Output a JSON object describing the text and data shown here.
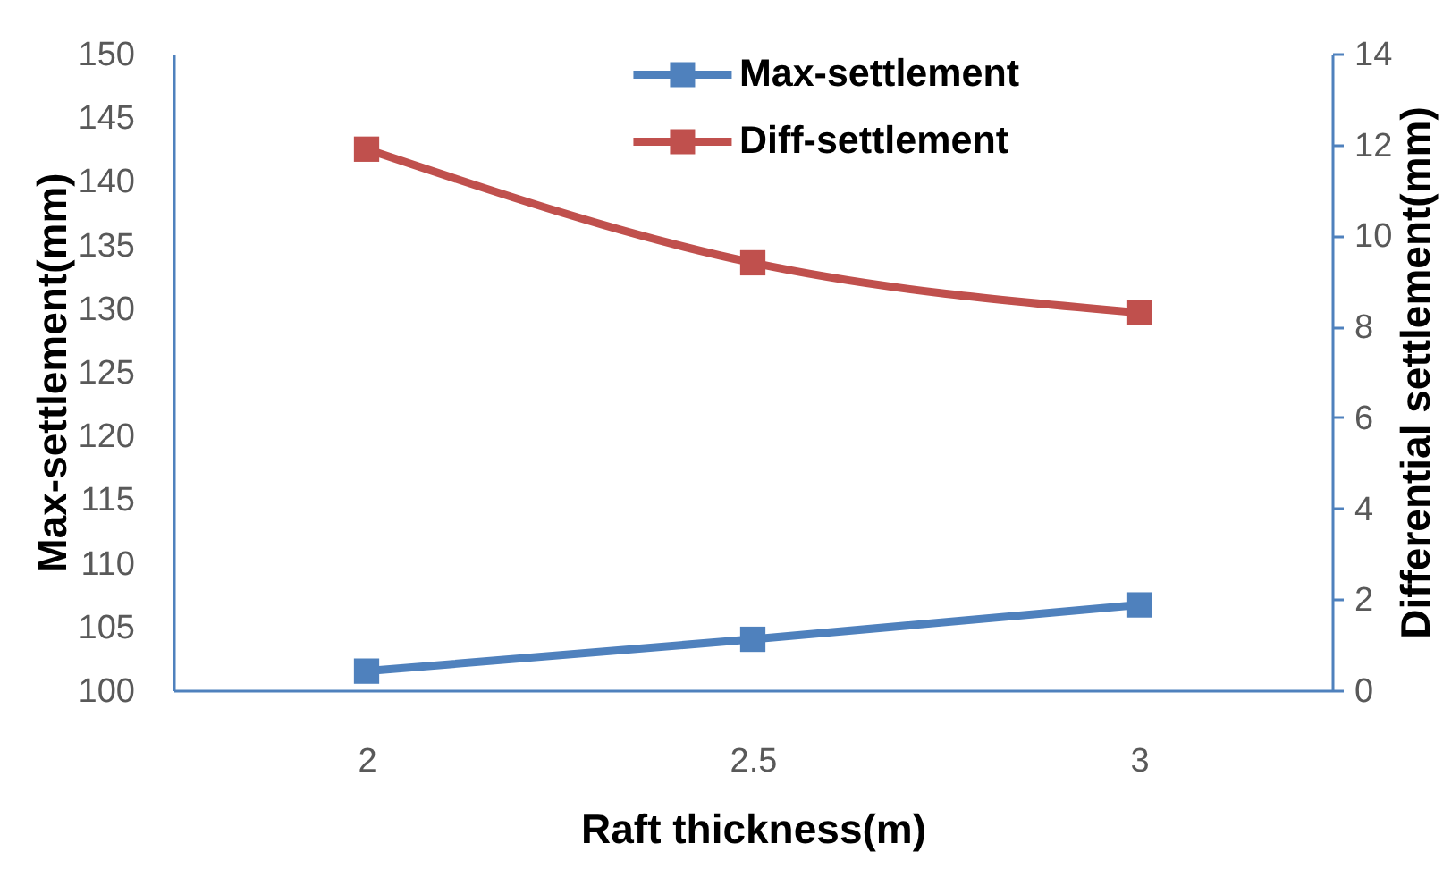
{
  "chart_data": {
    "type": "line",
    "xlabel": "Raft thickness(m)",
    "ylabel": "Max-settlement(mm)",
    "y2label": "Differential settlement(mm)",
    "categories": [
      "2",
      "2.5",
      "3"
    ],
    "series": [
      {
        "name": "Max-settlement",
        "color": "#4f81bd",
        "values": [
          101.5,
          104,
          106.7
        ]
      },
      {
        "name": "Diff-settlement",
        "color": "#c0504d",
        "values": [
          11.9,
          9.4,
          8.3
        ],
        "axis": "y2"
      }
    ],
    "ylim": [
      100,
      150
    ],
    "yticks": [
      100,
      105,
      110,
      115,
      120,
      125,
      130,
      135,
      140,
      145,
      150
    ],
    "y2lim": [
      0,
      14
    ],
    "y2ticks": [
      0,
      2,
      4,
      6,
      8,
      10,
      12,
      14
    ],
    "legend": "top",
    "grid": false,
    "marker": "square",
    "line_style": "solid"
  }
}
